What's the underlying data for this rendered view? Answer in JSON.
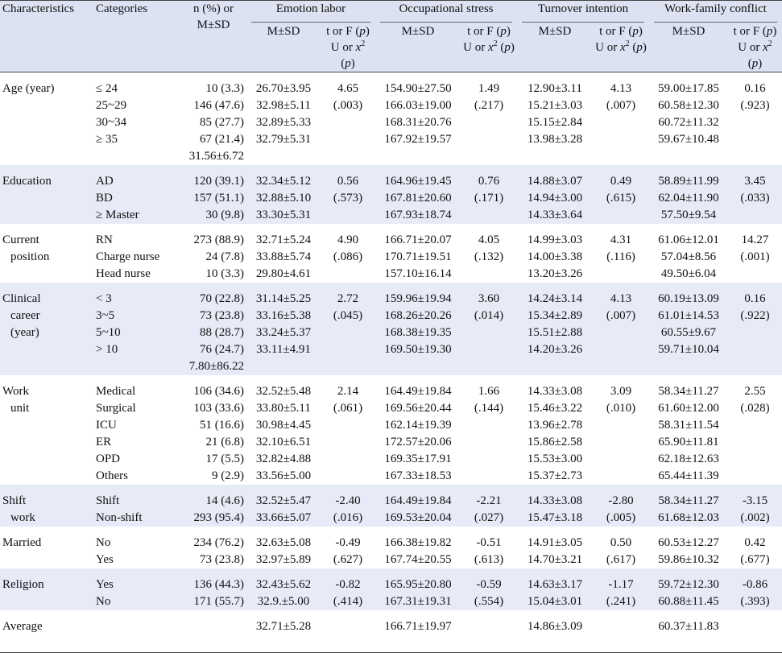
{
  "header": {
    "characteristics": "Characteristics",
    "categories": "Categories",
    "n_line1": "n (%) or",
    "n_line2": "M±SD",
    "groups": [
      "Emotion labor",
      "Occupational stress",
      "Turnover intention",
      "Work-family conflict"
    ],
    "msd": "M±SD",
    "test_line1_pre": "t or F (",
    "test_p": "p",
    "test_line1_post": ")",
    "test_line2_pre": "U or ",
    "test_x": "x",
    "test_sup": "2",
    "test_line2_mid": " (",
    "test_line2_post": ")"
  },
  "sections": [
    {
      "name": [
        "Age (year)"
      ],
      "rows": [
        {
          "cat": "≤ 24",
          "n": "10 (3.3)",
          "el": "26.70±3.95",
          "os": "154.90±27.50",
          "ti": "12.90±3.11",
          "wf": "59.00±17.85"
        },
        {
          "cat": "25~29",
          "n": "146 (47.6)",
          "el": "32.98±5.11",
          "os": "166.03±19.00",
          "ti": "15.21±3.03",
          "wf": "60.58±12.30"
        },
        {
          "cat": "30~34",
          "n": "85 (27.7)",
          "el": "32.89±5.33",
          "os": "168.31±20.76",
          "ti": "15.15±2.84",
          "wf": "60.72±11.32"
        },
        {
          "cat": "≥ 35",
          "n": "67 (21.4)",
          "el": "32.79±5.31",
          "os": "167.92±19.57",
          "ti": "13.98±3.28",
          "wf": "59.67±10.48"
        },
        {
          "cat": "",
          "n": "31.56±6.72",
          "el": "",
          "os": "",
          "ti": "",
          "wf": ""
        }
      ],
      "tests": {
        "el": [
          "4.65",
          "(.003)"
        ],
        "os": [
          "1.49",
          "(.217)"
        ],
        "ti": [
          "4.13",
          "(.007)"
        ],
        "wf": [
          "0.16",
          "(.923)"
        ]
      }
    },
    {
      "name": [
        "Education"
      ],
      "rows": [
        {
          "cat": "AD",
          "n": "120 (39.1)",
          "el": "32.34±5.12",
          "os": "164.96±19.45",
          "ti": "14.88±3.07",
          "wf": "58.89±11.99"
        },
        {
          "cat": "BD",
          "n": "157 (51.1)",
          "el": "32.88±5.10",
          "os": "167.81±20.60",
          "ti": "14.94±3.00",
          "wf": "62.04±11.90"
        },
        {
          "cat": "≥ Master",
          "n": "30 (9.8)",
          "el": "33.30±5.31",
          "os": "167.93±18.74",
          "ti": "14.33±3.64",
          "wf": "57.50±9.54"
        }
      ],
      "tests": {
        "el": [
          "0.56",
          "(.573)"
        ],
        "os": [
          "0.76",
          "(.171)"
        ],
        "ti": [
          "0.49",
          "(.615)"
        ],
        "wf": [
          "3.45",
          "(.033)"
        ]
      }
    },
    {
      "name": [
        "Current",
        "position"
      ],
      "rows": [
        {
          "cat": "RN",
          "n": "273 (88.9)",
          "el": "32.71±5.24",
          "os": "166.71±20.07",
          "ti": "14.99±3.03",
          "wf": "61.06±12.01"
        },
        {
          "cat": "Charge nurse",
          "n": "24 (7.8)",
          "el": "33.88±5.74",
          "os": "170.71±19.51",
          "ti": "14.00±3.38",
          "wf": "57.04±8.56"
        },
        {
          "cat": "Head nurse",
          "n": "10 (3.3)",
          "el": "29.80±4.61",
          "os": "157.10±16.14",
          "ti": "13.20±3.26",
          "wf": "49.50±6.04"
        }
      ],
      "tests": {
        "el": [
          "4.90",
          "(.086)"
        ],
        "os": [
          "4.05",
          "(.132)"
        ],
        "ti": [
          "4.31",
          "(.116)"
        ],
        "wf": [
          "14.27",
          "(.001)"
        ]
      }
    },
    {
      "name": [
        "Clinical",
        "career",
        "(year)"
      ],
      "rows": [
        {
          "cat": "< 3",
          "n": "70 (22.8)",
          "el": "31.14±5.25",
          "os": "159.96±19.94",
          "ti": "14.24±3.14",
          "wf": "60.19±13.09"
        },
        {
          "cat": "3~5",
          "n": "73 (23.8)",
          "el": "33.16±5.38",
          "os": "168.26±20.26",
          "ti": "15.34±2.89",
          "wf": "61.01±14.53"
        },
        {
          "cat": "5~10",
          "n": "88 (28.7)",
          "el": "33.24±5.37",
          "os": "168.38±19.35",
          "ti": "15.51±2.88",
          "wf": "60.55±9.67"
        },
        {
          "cat": "> 10",
          "n": "76 (24.7)",
          "el": "33.11±4.91",
          "os": "169.50±19.30",
          "ti": "14.20±3.26",
          "wf": "59.71±10.04"
        },
        {
          "cat": "",
          "n": "7.80±86.22",
          "el": "",
          "os": "",
          "ti": "",
          "wf": ""
        }
      ],
      "tests": {
        "el": [
          "2.72",
          "(.045)"
        ],
        "os": [
          "3.60",
          "(.014)"
        ],
        "ti": [
          "4.13",
          "(.007)"
        ],
        "wf": [
          "0.16",
          "(.922)"
        ]
      }
    },
    {
      "name": [
        "Work",
        "unit"
      ],
      "rows": [
        {
          "cat": "Medical",
          "n": "106 (34.6)",
          "el": "32.52±5.48",
          "os": "164.49±19.84",
          "ti": "14.33±3.08",
          "wf": "58.34±11.27"
        },
        {
          "cat": "Surgical",
          "n": "103 (33.6)",
          "el": "33.80±5.11",
          "os": "169.56±20.44",
          "ti": "15.46±3.22",
          "wf": "61.60±12.00"
        },
        {
          "cat": "ICU",
          "n": "51 (16.6)",
          "el": "30.98±4.45",
          "os": "162.14±19.39",
          "ti": "13.96±2.78",
          "wf": "58.31±11.54"
        },
        {
          "cat": "ER",
          "n": "21 (6.8)",
          "el": "32.10±6.51",
          "os": "172.57±20.06",
          "ti": "15.86±2.58",
          "wf": "65.90±11.81"
        },
        {
          "cat": "OPD",
          "n": "17 (5.5)",
          "el": "32.82±4.88",
          "os": "169.35±17.91",
          "ti": "15.53±3.00",
          "wf": "62.18±12.63"
        },
        {
          "cat": "Others",
          "n": "9 (2.9)",
          "el": "33.56±5.00",
          "os": "167.33±18.53",
          "ti": "15.37±2.73",
          "wf": "65.44±11.39"
        }
      ],
      "tests": {
        "el": [
          "2.14",
          "(.061)"
        ],
        "os": [
          "1.66",
          "(.144)"
        ],
        "ti": [
          "3.09",
          "(.010)"
        ],
        "wf": [
          "2.55",
          "(.028)"
        ]
      }
    },
    {
      "name": [
        "Shift",
        "work"
      ],
      "rows": [
        {
          "cat": "Shift",
          "n": "14 (4.6)",
          "el": "32.52±5.47",
          "os": "164.49±19.84",
          "ti": "14.33±3.08",
          "wf": "58.34±11.27"
        },
        {
          "cat": "Non-shift",
          "n": "293 (95.4)",
          "el": "33.66±5.07",
          "os": "169.53±20.04",
          "ti": "15.47±3.18",
          "wf": "61.68±12.03"
        }
      ],
      "tests": {
        "el": [
          "-2.40",
          "(.016)"
        ],
        "os": [
          "-2.21",
          "(.027)"
        ],
        "ti": [
          "-2.80",
          "(.005)"
        ],
        "wf": [
          "-3.15",
          "(.002)"
        ]
      }
    },
    {
      "name": [
        "Married"
      ],
      "rows": [
        {
          "cat": "No",
          "n": "234 (76.2)",
          "el": "32.63±5.08",
          "os": "166.38±19.82",
          "ti": "14.91±3.05",
          "wf": "60.53±12.27"
        },
        {
          "cat": "Yes",
          "n": "73 (23.8)",
          "el": "32.97±5.89",
          "os": "167.74±20.55",
          "ti": "14.70±3.21",
          "wf": "59.86±10.32"
        }
      ],
      "tests": {
        "el": [
          "-0.49",
          "(.627)"
        ],
        "os": [
          "-0.51",
          "(.613)"
        ],
        "ti": [
          "0.50",
          "(.617)"
        ],
        "wf": [
          "0.42",
          "(.677)"
        ]
      }
    },
    {
      "name": [
        "Religion"
      ],
      "rows": [
        {
          "cat": "Yes",
          "n": "136 (44.3)",
          "el": "32.43±5.62",
          "os": "165.95±20.80",
          "ti": "14.63±3.17",
          "wf": "59.72±12.30"
        },
        {
          "cat": "No",
          "n": "171 (55.7)",
          "el": "32.9.±5.00",
          "os": "167.31±19.31",
          "ti": "15.04±3.01",
          "wf": "60.88±11.45"
        }
      ],
      "tests": {
        "el": [
          "-0.82",
          "(.414)"
        ],
        "os": [
          "-0.59",
          "(.554)"
        ],
        "ti": [
          "-1.17",
          "(.241)"
        ],
        "wf": [
          "-0.86",
          "(.393)"
        ]
      }
    },
    {
      "name": [
        "Average"
      ],
      "rows": [
        {
          "cat": "",
          "n": "",
          "el": "32.71±5.28",
          "os": "166.71±19.97",
          "ti": "14.86±3.09",
          "wf": "60.37±11.83"
        }
      ],
      "tests": {
        "el": [
          "",
          ""
        ],
        "os": [
          "",
          ""
        ],
        "ti": [
          "",
          ""
        ],
        "wf": [
          "",
          ""
        ]
      }
    }
  ]
}
